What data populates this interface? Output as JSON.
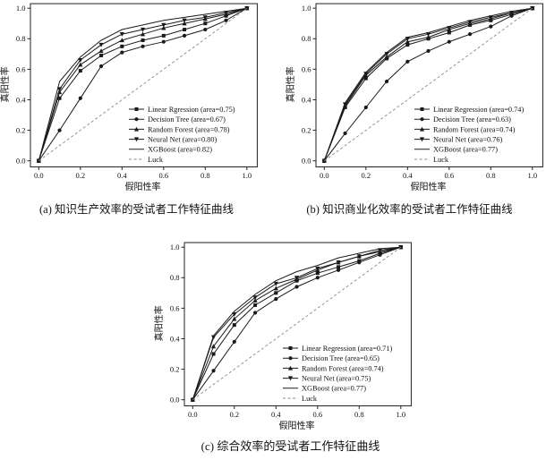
{
  "figure": {
    "background": "#ffffff",
    "colors": {
      "curve": "#1a1a1a",
      "luck": "#888888",
      "spine": "#222222",
      "text": "#111111"
    },
    "axis": {
      "xlabel": "假阳性率",
      "ylabel": "真阳性率",
      "xticks": [
        "0.0",
        "0.2",
        "0.4",
        "0.6",
        "0.8",
        "1.0"
      ],
      "yticks": [
        "0.0",
        "0.2",
        "0.4",
        "0.6",
        "0.8",
        "1.0"
      ]
    }
  },
  "chart_data": [
    {
      "id": "a",
      "type": "line",
      "title": "(a) 知识生产效率的受试者工作特征曲线",
      "xlabel": "假阳性率",
      "ylabel": "真阳性率",
      "xlim": [
        -0.04,
        1.05
      ],
      "ylim": [
        -0.04,
        1.03
      ],
      "grid": false,
      "legend_position": "lower right",
      "x": [
        0.0,
        0.1,
        0.2,
        0.3,
        0.4,
        0.5,
        0.6,
        0.7,
        0.8,
        0.9,
        1.0
      ],
      "series": [
        {
          "name": "Linear Rgression",
          "legend": "Linear Rgression (area=0.75)",
          "area": 0.75,
          "marker": "square",
          "values": [
            0.0,
            0.41,
            0.59,
            0.69,
            0.75,
            0.79,
            0.82,
            0.86,
            0.9,
            0.95,
            1.0
          ]
        },
        {
          "name": "Decision Tree",
          "legend": "Decision Tree (area=0.67)",
          "area": 0.67,
          "marker": "circle",
          "values": [
            0.0,
            0.2,
            0.41,
            0.62,
            0.71,
            0.75,
            0.78,
            0.82,
            0.86,
            0.92,
            1.0
          ]
        },
        {
          "name": "Random Forest",
          "legend": "Random Forest (area=0.78)",
          "area": 0.78,
          "marker": "triangle-up",
          "values": [
            0.0,
            0.45,
            0.63,
            0.72,
            0.79,
            0.83,
            0.87,
            0.9,
            0.93,
            0.96,
            1.0
          ]
        },
        {
          "name": "Neural Net",
          "legend": "Neural Net (area=0.80)",
          "area": 0.8,
          "marker": "triangle-down",
          "values": [
            0.0,
            0.47,
            0.66,
            0.76,
            0.83,
            0.86,
            0.89,
            0.92,
            0.94,
            0.97,
            1.0
          ]
        },
        {
          "name": "XGBoost",
          "legend": "XGBoost (area=0.82)",
          "area": 0.82,
          "marker": "none",
          "values": [
            0.0,
            0.52,
            0.68,
            0.79,
            0.86,
            0.89,
            0.92,
            0.94,
            0.96,
            0.98,
            1.0
          ]
        },
        {
          "name": "Luck",
          "legend": "Luck",
          "marker": "none",
          "style": "dashed",
          "values": [
            0.0,
            0.1,
            0.2,
            0.3,
            0.4,
            0.5,
            0.6,
            0.7,
            0.8,
            0.9,
            1.0
          ]
        }
      ]
    },
    {
      "id": "b",
      "type": "line",
      "title": "(b) 知识商业化效率的受试者工作特征曲线",
      "xlabel": "假阳性率",
      "ylabel": "真阳性率",
      "xlim": [
        -0.04,
        1.05
      ],
      "ylim": [
        -0.04,
        1.03
      ],
      "grid": false,
      "legend_position": "lower right",
      "x": [
        0.0,
        0.1,
        0.2,
        0.3,
        0.4,
        0.5,
        0.6,
        0.7,
        0.8,
        0.9,
        1.0
      ],
      "series": [
        {
          "name": "Linear Regression",
          "legend": "Linear Regression (area=0.74)",
          "area": 0.74,
          "marker": "square",
          "values": [
            0.0,
            0.35,
            0.54,
            0.67,
            0.76,
            0.8,
            0.84,
            0.89,
            0.92,
            0.96,
            1.0
          ]
        },
        {
          "name": "Decision Tree",
          "legend": "Decision Tree (area=0.63)",
          "area": 0.63,
          "marker": "circle",
          "values": [
            0.0,
            0.18,
            0.35,
            0.52,
            0.65,
            0.72,
            0.78,
            0.83,
            0.88,
            0.95,
            1.0
          ]
        },
        {
          "name": "Random Forest",
          "legend": "Random Forest (area=0.74)",
          "area": 0.74,
          "marker": "triangle-up",
          "values": [
            0.0,
            0.36,
            0.56,
            0.68,
            0.78,
            0.81,
            0.86,
            0.9,
            0.93,
            0.97,
            1.0
          ]
        },
        {
          "name": "Neural Net",
          "legend": "Neural Net (area=0.76)",
          "area": 0.76,
          "marker": "triangle-down",
          "values": [
            0.0,
            0.37,
            0.57,
            0.7,
            0.8,
            0.83,
            0.87,
            0.91,
            0.94,
            0.97,
            1.0
          ]
        },
        {
          "name": "XGBoost",
          "legend": "XGBoost (area=0.77)",
          "area": 0.77,
          "marker": "none",
          "values": [
            0.0,
            0.38,
            0.58,
            0.71,
            0.81,
            0.84,
            0.88,
            0.92,
            0.95,
            0.98,
            1.0
          ]
        },
        {
          "name": "Luck",
          "legend": "Luck",
          "marker": "none",
          "style": "dashed",
          "values": [
            0.0,
            0.1,
            0.2,
            0.3,
            0.4,
            0.5,
            0.6,
            0.7,
            0.8,
            0.9,
            1.0
          ]
        }
      ]
    },
    {
      "id": "c",
      "type": "line",
      "title": "(c) 综合效率的受试者工作特征曲线",
      "xlabel": "假阳性率",
      "ylabel": "真阳性率",
      "xlim": [
        -0.04,
        1.05
      ],
      "ylim": [
        -0.04,
        1.03
      ],
      "grid": false,
      "legend_position": "lower right",
      "x": [
        0.0,
        0.1,
        0.2,
        0.3,
        0.4,
        0.5,
        0.6,
        0.7,
        0.8,
        0.9,
        1.0
      ],
      "series": [
        {
          "name": "Linear Regression",
          "legend": "Linear Regression (area=0.71)",
          "area": 0.71,
          "marker": "square",
          "values": [
            0.0,
            0.3,
            0.49,
            0.62,
            0.7,
            0.78,
            0.83,
            0.87,
            0.91,
            0.96,
            1.0
          ]
        },
        {
          "name": "Decision Tree",
          "legend": "Decision Tree (area=0.65)",
          "area": 0.65,
          "marker": "circle",
          "values": [
            0.0,
            0.19,
            0.38,
            0.57,
            0.66,
            0.74,
            0.8,
            0.85,
            0.9,
            0.95,
            1.0
          ]
        },
        {
          "name": "Random Forest",
          "legend": "Random Forest (area=0.74)",
          "area": 0.74,
          "marker": "triangle-up",
          "values": [
            0.0,
            0.35,
            0.53,
            0.65,
            0.73,
            0.79,
            0.85,
            0.9,
            0.94,
            0.97,
            1.0
          ]
        },
        {
          "name": "Neural Net",
          "legend": "Neural Net (area=0.75)",
          "area": 0.75,
          "marker": "triangle-down",
          "values": [
            0.0,
            0.41,
            0.56,
            0.67,
            0.76,
            0.8,
            0.86,
            0.9,
            0.94,
            0.98,
            1.0
          ]
        },
        {
          "name": "XGBoost",
          "legend": "XGBoost (area=0.77)",
          "area": 0.77,
          "marker": "none",
          "values": [
            0.0,
            0.42,
            0.58,
            0.69,
            0.78,
            0.84,
            0.88,
            0.93,
            0.96,
            0.99,
            1.0
          ]
        },
        {
          "name": "Luck",
          "legend": "Luck",
          "marker": "none",
          "style": "dashed",
          "values": [
            0.0,
            0.1,
            0.2,
            0.3,
            0.4,
            0.5,
            0.6,
            0.7,
            0.8,
            0.9,
            1.0
          ]
        }
      ]
    }
  ]
}
